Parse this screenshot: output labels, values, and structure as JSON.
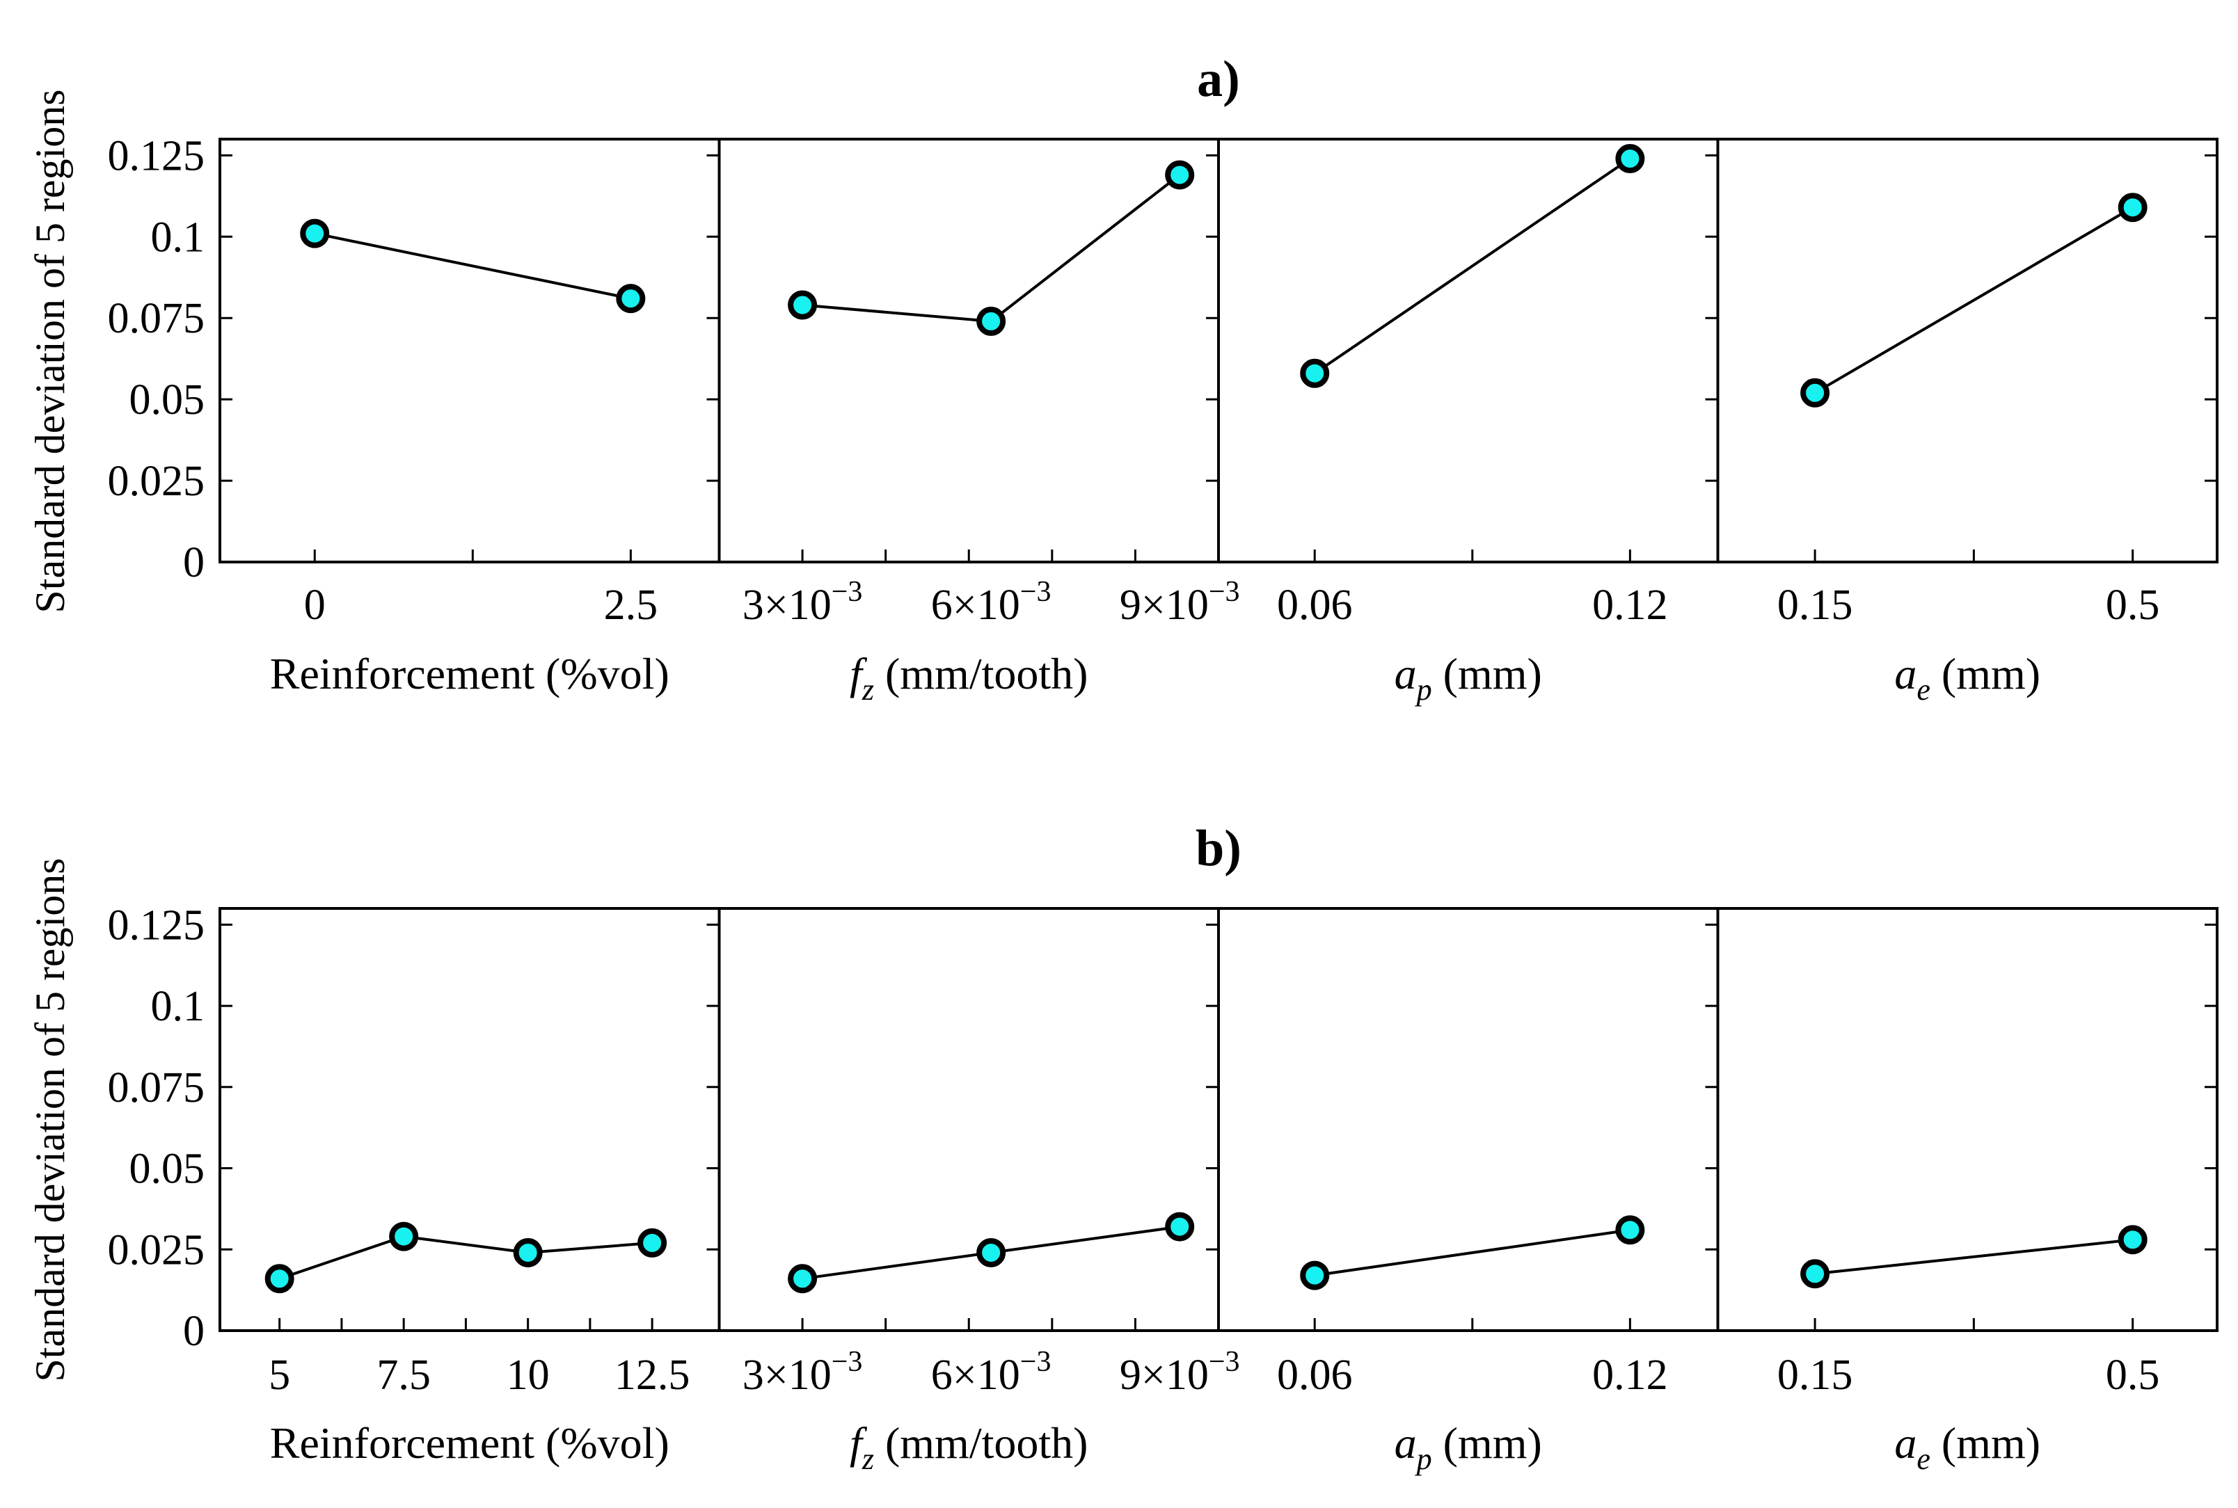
{
  "chart_data": [
    {
      "type": "line",
      "title": "a)",
      "ylabel": "Standard deviation of 5 regions",
      "ylim": [
        0,
        0.13
      ],
      "yticks": [
        0,
        0.025,
        0.05,
        0.075,
        0.1,
        0.125
      ],
      "ytick_labels": [
        "0",
        "0.025",
        "0.05",
        "0.075",
        "0.1",
        "0.125"
      ],
      "grid": false,
      "panels": [
        {
          "xlabel_parts": [
            {
              "text": "Reinforcement (%vol)",
              "italic": false
            }
          ],
          "xlim": [
            -0.75,
            3.2
          ],
          "x": [
            0,
            2.5
          ],
          "y": [
            0.101,
            0.081
          ],
          "xticks": [
            0,
            1.25,
            2.5
          ],
          "xtick_labels": [
            {
              "v": 0,
              "base": "0"
            },
            {
              "v": 2.5,
              "base": "2.5"
            }
          ]
        },
        {
          "xlabel_parts": [
            {
              "text": "f",
              "italic": true
            },
            {
              "text": "z",
              "sub": true,
              "italic": true
            },
            {
              "text": " (mm/tooth)",
              "italic": false
            }
          ],
          "xlim": [
            0.0015,
            0.0105
          ],
          "x": [
            0.003,
            0.0064,
            0.0098
          ],
          "y": [
            0.079,
            0.074,
            0.119
          ],
          "xticks": [
            0.003,
            0.0045,
            0.006,
            0.0075,
            0.009
          ],
          "xtick_labels": [
            {
              "v": 0.003,
              "base": "3×10",
              "exp": "−3"
            },
            {
              "v": 0.0064,
              "base": "6×10",
              "exp": "−3"
            },
            {
              "v": 0.0098,
              "base": "9×10",
              "exp": "−3"
            }
          ]
        },
        {
          "xlabel_parts": [
            {
              "text": "a",
              "italic": true
            },
            {
              "text": "p",
              "sub": true,
              "italic": true
            },
            {
              "text": " (mm)",
              "italic": false
            }
          ],
          "xlim": [
            0.0417,
            0.1367
          ],
          "x": [
            0.06,
            0.12
          ],
          "y": [
            0.058,
            0.124
          ],
          "xticks": [
            0.06,
            0.09,
            0.12
          ],
          "xtick_labels": [
            {
              "v": 0.06,
              "base": "0.06"
            },
            {
              "v": 0.12,
              "base": "0.12"
            }
          ]
        },
        {
          "xlabel_parts": [
            {
              "text": "a",
              "italic": true
            },
            {
              "text": "e",
              "sub": true,
              "italic": true
            },
            {
              "text": " (mm)",
              "italic": false
            }
          ],
          "xlim": [
            0.043,
            0.593
          ],
          "x": [
            0.15,
            0.5
          ],
          "y": [
            0.052,
            0.109
          ],
          "xticks": [
            0.15,
            0.325,
            0.5
          ],
          "xtick_labels": [
            {
              "v": 0.15,
              "base": "0.15"
            },
            {
              "v": 0.5,
              "base": "0.5"
            }
          ]
        }
      ]
    },
    {
      "type": "line",
      "title": "b)",
      "ylabel": "Standard deviation of 5 regions",
      "ylim": [
        0,
        0.13
      ],
      "yticks": [
        0,
        0.025,
        0.05,
        0.075,
        0.1,
        0.125
      ],
      "ytick_labels": [
        "0",
        "0.025",
        "0.05",
        "0.075",
        "0.1",
        "0.125"
      ],
      "grid": false,
      "panels": [
        {
          "xlabel_parts": [
            {
              "text": "Reinforcement (%vol)",
              "italic": false
            }
          ],
          "xlim": [
            3.8,
            13.85
          ],
          "x": [
            5,
            7.5,
            10,
            12.5
          ],
          "y": [
            0.016,
            0.029,
            0.024,
            0.027
          ],
          "xticks": [
            5,
            6.25,
            7.5,
            8.75,
            10,
            11.25,
            12.5
          ],
          "xtick_labels": [
            {
              "v": 5,
              "base": "5"
            },
            {
              "v": 7.5,
              "base": "7.5"
            },
            {
              "v": 10,
              "base": "10"
            },
            {
              "v": 12.5,
              "base": "12.5"
            }
          ]
        },
        {
          "xlabel_parts": [
            {
              "text": "f",
              "italic": true
            },
            {
              "text": "z",
              "sub": true,
              "italic": true
            },
            {
              "text": " (mm/tooth)",
              "italic": false
            }
          ],
          "xlim": [
            0.0015,
            0.0105
          ],
          "x": [
            0.003,
            0.0064,
            0.0098
          ],
          "y": [
            0.016,
            0.024,
            0.032
          ],
          "xticks": [
            0.003,
            0.0045,
            0.006,
            0.0075,
            0.009
          ],
          "xtick_labels": [
            {
              "v": 0.003,
              "base": "3×10",
              "exp": "−3"
            },
            {
              "v": 0.0064,
              "base": "6×10",
              "exp": "−3"
            },
            {
              "v": 0.0098,
              "base": "9×10",
              "exp": "−3"
            }
          ]
        },
        {
          "xlabel_parts": [
            {
              "text": "a",
              "italic": true
            },
            {
              "text": "p",
              "sub": true,
              "italic": true
            },
            {
              "text": " (mm)",
              "italic": false
            }
          ],
          "xlim": [
            0.0417,
            0.1367
          ],
          "x": [
            0.06,
            0.12
          ],
          "y": [
            0.017,
            0.031
          ],
          "xticks": [
            0.06,
            0.09,
            0.12
          ],
          "xtick_labels": [
            {
              "v": 0.06,
              "base": "0.06"
            },
            {
              "v": 0.12,
              "base": "0.12"
            }
          ]
        },
        {
          "xlabel_parts": [
            {
              "text": "a",
              "italic": true
            },
            {
              "text": "e",
              "sub": true,
              "italic": true
            },
            {
              "text": " (mm)",
              "italic": false
            }
          ],
          "xlim": [
            0.043,
            0.593
          ],
          "x": [
            0.15,
            0.5
          ],
          "y": [
            0.0175,
            0.028
          ],
          "xticks": [
            0.15,
            0.325,
            0.5
          ],
          "xtick_labels": [
            {
              "v": 0.15,
              "base": "0.15"
            },
            {
              "v": 0.5,
              "base": "0.5"
            }
          ]
        }
      ]
    }
  ]
}
